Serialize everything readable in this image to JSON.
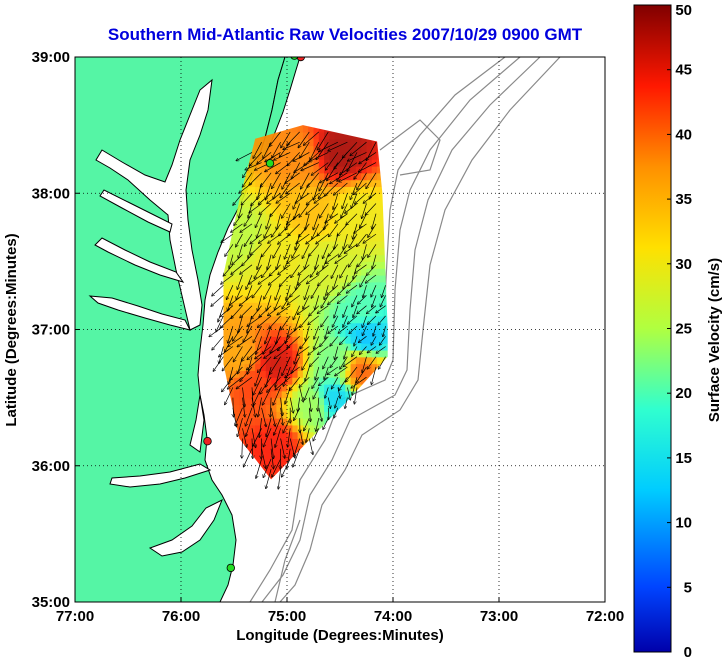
{
  "title": "Southern Mid-Atlantic Raw Velocities 2007/10/29 0900 GMT",
  "colors": {
    "title": "#0000dd",
    "land": "#55f5a5",
    "ocean": "#ffffff",
    "coast": "#000000",
    "bathymetry": "#8a8a8a",
    "grid": "#000000",
    "site_green": "#22dd22",
    "site_red": "#ee2222"
  },
  "chart_data": {
    "type": "map-vector-field",
    "title": "Southern Mid-Atlantic Raw Velocities 2007/10/29 0900 GMT",
    "xlabel": "Longitude (Degrees:Minutes)",
    "ylabel": "Latitude (Degrees:Minutes)",
    "xlim": [
      -77,
      -72
    ],
    "ylim": [
      35,
      39
    ],
    "xticks": [
      {
        "value": -77,
        "label": "77:00"
      },
      {
        "value": -76,
        "label": "76:00"
      },
      {
        "value": -75,
        "label": "75:00"
      },
      {
        "value": -74,
        "label": "74:00"
      },
      {
        "value": -73,
        "label": "73:00"
      },
      {
        "value": -72,
        "label": "72:00"
      }
    ],
    "yticks": [
      {
        "value": 35,
        "label": "35:00"
      },
      {
        "value": 36,
        "label": "36:00"
      },
      {
        "value": 37,
        "label": "37:00"
      },
      {
        "value": 38,
        "label": "38:00"
      },
      {
        "value": 39,
        "label": "39:00"
      }
    ],
    "grid": "dotted",
    "colorbar": {
      "label": "Surface Velocity (cm/s)",
      "range": [
        0,
        50
      ],
      "ticks": [
        "0",
        "5",
        "10",
        "15",
        "20",
        "25",
        "30",
        "35",
        "40",
        "45",
        "50"
      ],
      "colormap": "jet"
    },
    "coverage_region_lonlat": [
      [
        -75.3,
        38.4
      ],
      [
        -74.85,
        38.5
      ],
      [
        -74.15,
        38.38
      ],
      [
        -74.1,
        38.0
      ],
      [
        -74.05,
        37.0
      ],
      [
        -74.05,
        36.8
      ],
      [
        -74.4,
        36.5
      ],
      [
        -74.9,
        36.1
      ],
      [
        -75.15,
        35.9
      ],
      [
        -75.45,
        36.2
      ],
      [
        -75.6,
        36.75
      ],
      [
        -75.6,
        37.4
      ],
      [
        -75.45,
        37.95
      ]
    ],
    "speed_zones": [
      {
        "lon": -74.5,
        "lat": 38.3,
        "speed": 48
      },
      {
        "lon": -74.9,
        "lat": 38.25,
        "speed": 38
      },
      {
        "lon": -74.8,
        "lat": 37.9,
        "speed": 34
      },
      {
        "lon": -74.35,
        "lat": 37.85,
        "speed": 30
      },
      {
        "lon": -75.1,
        "lat": 37.55,
        "speed": 30
      },
      {
        "lon": -74.6,
        "lat": 37.45,
        "speed": 28
      },
      {
        "lon": -74.3,
        "lat": 37.15,
        "speed": 20
      },
      {
        "lon": -74.25,
        "lat": 36.95,
        "speed": 12
      },
      {
        "lon": -74.55,
        "lat": 36.75,
        "speed": 22
      },
      {
        "lon": -74.3,
        "lat": 36.7,
        "speed": 40
      },
      {
        "lon": -75.1,
        "lat": 36.75,
        "speed": 46
      },
      {
        "lon": -75.3,
        "lat": 36.6,
        "speed": 42
      },
      {
        "lon": -74.75,
        "lat": 36.45,
        "speed": 24
      },
      {
        "lon": -74.55,
        "lat": 36.5,
        "speed": 14
      },
      {
        "lon": -75.1,
        "lat": 36.15,
        "speed": 44
      },
      {
        "lon": -75.45,
        "lat": 36.8,
        "speed": 36
      },
      {
        "lon": -75.45,
        "lat": 37.7,
        "speed": 26
      }
    ],
    "arrow_grid": {
      "lon_step": 0.09,
      "lat_step": 0.075,
      "mean_direction_deg": 235
    },
    "radar_sites": [
      {
        "lon": -74.87,
        "lat": 39.0,
        "status": "red"
      },
      {
        "lon": -74.93,
        "lat": 39.01,
        "status": "green"
      },
      {
        "lon": -75.16,
        "lat": 38.22,
        "status": "green"
      },
      {
        "lon": -75.75,
        "lat": 36.18,
        "status": "red"
      },
      {
        "lon": -75.53,
        "lat": 35.25,
        "status": "green"
      }
    ]
  }
}
